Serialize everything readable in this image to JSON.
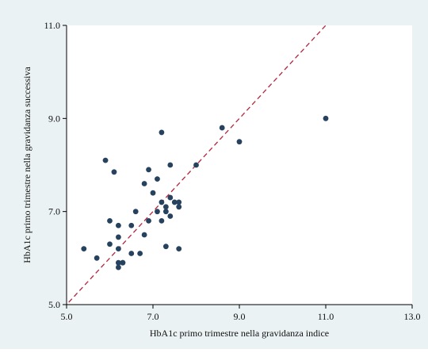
{
  "chart_data": {
    "type": "scatter",
    "title": "",
    "xlabel": "HbA1c primo trimestre nella gravidanza indice",
    "ylabel": "HbA1c primo trimestre nella gravidanza successiva",
    "xlim": [
      5.0,
      13.0
    ],
    "ylim": [
      5.0,
      11.0
    ],
    "xticks": [
      5.0,
      7.0,
      9.0,
      11.0,
      13.0
    ],
    "yticks": [
      5.0,
      7.0,
      9.0,
      11.0
    ],
    "xtick_labels": [
      "5.0",
      "7.0",
      "9.0",
      "11.0",
      "13.0"
    ],
    "ytick_labels": [
      "5.0",
      "7.0",
      "9.0",
      "11.0"
    ],
    "grid": false,
    "reference_line": {
      "type": "identity",
      "style": "dashed"
    },
    "x": [
      5.4,
      5.7,
      5.9,
      6.0,
      6.0,
      6.1,
      6.2,
      6.2,
      6.2,
      6.2,
      6.2,
      6.3,
      6.3,
      6.5,
      6.5,
      6.6,
      6.7,
      6.8,
      6.8,
      6.9,
      6.9,
      7.0,
      7.1,
      7.1,
      7.2,
      7.2,
      7.2,
      7.3,
      7.3,
      7.3,
      7.4,
      7.4,
      7.4,
      7.5,
      7.6,
      7.6,
      7.6,
      8.0,
      8.6,
      9.0,
      11.0
    ],
    "y": [
      6.2,
      6.0,
      8.1,
      6.3,
      6.8,
      7.85,
      6.7,
      6.45,
      6.2,
      5.9,
      5.8,
      5.9,
      5.9,
      6.7,
      6.1,
      7.0,
      6.1,
      7.6,
      6.5,
      7.9,
      6.8,
      7.4,
      7.7,
      7.0,
      8.7,
      7.2,
      6.8,
      7.1,
      7.0,
      6.25,
      8.0,
      7.3,
      6.9,
      7.2,
      7.2,
      7.1,
      6.2,
      8.0,
      8.8,
      8.5,
      9.0
    ],
    "colors": {
      "points": "#26425f",
      "line": "#b5243f",
      "background": "#eaf2f3",
      "plot": "#ffffff",
      "axis": "#000000"
    }
  }
}
